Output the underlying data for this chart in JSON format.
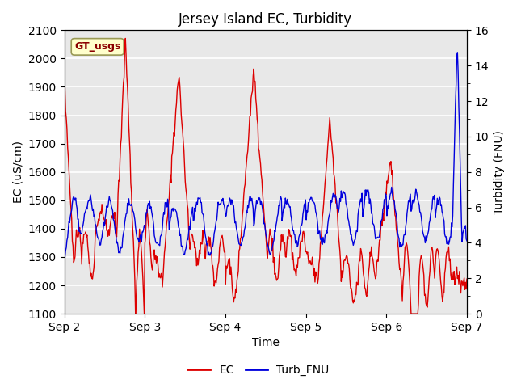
{
  "title": "Jersey Island EC, Turbidity",
  "xlabel": "Time",
  "ylabel_left": "EC (uS/cm)",
  "ylabel_right": "Turbidity (FNU)",
  "legend_label": "GT_usgs",
  "series_labels": [
    "EC",
    "Turb_FNU"
  ],
  "ec_color": "#dd0000",
  "turb_color": "#0000dd",
  "background_color": "#e8e8e8",
  "ylim_left": [
    1100,
    2100
  ],
  "ylim_right": [
    0,
    16
  ],
  "yticks_left": [
    1100,
    1200,
    1300,
    1400,
    1500,
    1600,
    1700,
    1800,
    1900,
    2000,
    2100
  ],
  "yticks_right": [
    0,
    2,
    4,
    6,
    8,
    10,
    12,
    14,
    16
  ],
  "xtick_positions": [
    0,
    1,
    2,
    3,
    4,
    5
  ],
  "xtick_labels": [
    "Sep 2",
    "Sep 3",
    "Sep 4",
    "Sep 5",
    "Sep 6",
    "Sep 7"
  ],
  "grid_color": "white",
  "title_fontsize": 12,
  "axis_label_fontsize": 10,
  "tick_fontsize": 10,
  "linewidth": 1.0
}
